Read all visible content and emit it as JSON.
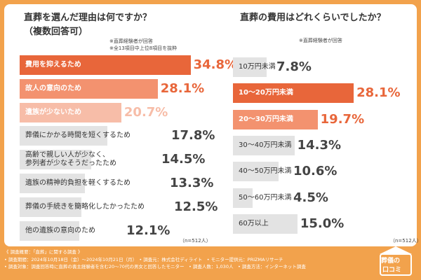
{
  "chart_data": [
    {
      "type": "bar",
      "orientation": "horizontal",
      "title_line1": "直葬を選んだ理由は何ですか？",
      "title_line2": "（複数回答可）",
      "note1": "※直葬経験者が回答",
      "note2": "※全13項目中上位8項目を抜粋",
      "categories": [
        "費用を抑えるため",
        "故人の意向のため",
        "遺族が少ないため",
        "葬儀にかかる時間を短くするため",
        "高齢で親しい人が少なく、\n参列者が少なそうだったため",
        "遺族の精神的負担を軽くするため",
        "葬儀の手続きを簡略化したかったため",
        "他の遺族の意向のため"
      ],
      "values": [
        34.8,
        28.1,
        20.7,
        17.8,
        14.5,
        13.3,
        12.5,
        12.1
      ],
      "value_labels": [
        "34.8%",
        "28.1%",
        "20.7%",
        "17.8%",
        "14.5%",
        "13.3%",
        "12.5%",
        "12.1%"
      ],
      "colors": [
        "#e8663a",
        "#f3926f",
        "#f7bda8",
        "#e3e3e3",
        "#e3e3e3",
        "#e3e3e3",
        "#e3e3e3",
        "#e3e3e3"
      ],
      "value_colors": [
        "#e8663a",
        "#e8663a",
        "#f7bda8",
        "#444444",
        "#444444",
        "#444444",
        "#444444",
        "#444444"
      ],
      "sample_note": "（n=512人）",
      "xlim": [
        0,
        40
      ],
      "grid": false
    },
    {
      "type": "bar",
      "orientation": "horizontal",
      "title_line1": "直葬の費用はどれくらいでしたか？",
      "note1": "※直葬経験者が回答",
      "categories": [
        "10万円未満",
        "10〜20万円未満",
        "20〜30万円未満",
        "30〜40万円未満",
        "40〜50万円未満",
        "50〜60万円未満",
        "60万以上"
      ],
      "values": [
        7.8,
        28.1,
        19.7,
        14.3,
        10.6,
        4.5,
        15.0
      ],
      "value_labels": [
        "7.8%",
        "28.1%",
        "19.7%",
        "14.3%",
        "10.6%",
        "4.5%",
        "15.0%"
      ],
      "colors": [
        "#e3e3e3",
        "#e8663a",
        "#f3926f",
        "#e3e3e3",
        "#e3e3e3",
        "#e3e3e3",
        "#e3e3e3"
      ],
      "value_colors": [
        "#444444",
        "#e8663a",
        "#e8663a",
        "#444444",
        "#444444",
        "#444444",
        "#444444"
      ],
      "sample_note": "（n=512人）",
      "xlim": [
        0,
        32
      ],
      "grid": false
    }
  ],
  "footer": {
    "line1": "《 調査概要：「直葬」に関する調査 》",
    "line2": "• 調査期間：2024年10月18日（金）〜2024年10月21日（月）　• 調査元：株式会社ディライト　• モニター提供元：PRIZMAリサーチ",
    "line3": "• 調査対象：調査回答時に直葬の喪主経験者を含む20〜70代の男女と回答したモニター　• 調査人数：1,030人　• 調査方法：インターネット調査"
  },
  "logo": {
    "line1": "葬儀の",
    "line2": "口コミ"
  },
  "colors": {
    "background": "#f2a24c",
    "accent": "#e8663a",
    "accent_mid": "#f3926f",
    "accent_light": "#f7bda8",
    "bar_gray": "#e3e3e3"
  }
}
